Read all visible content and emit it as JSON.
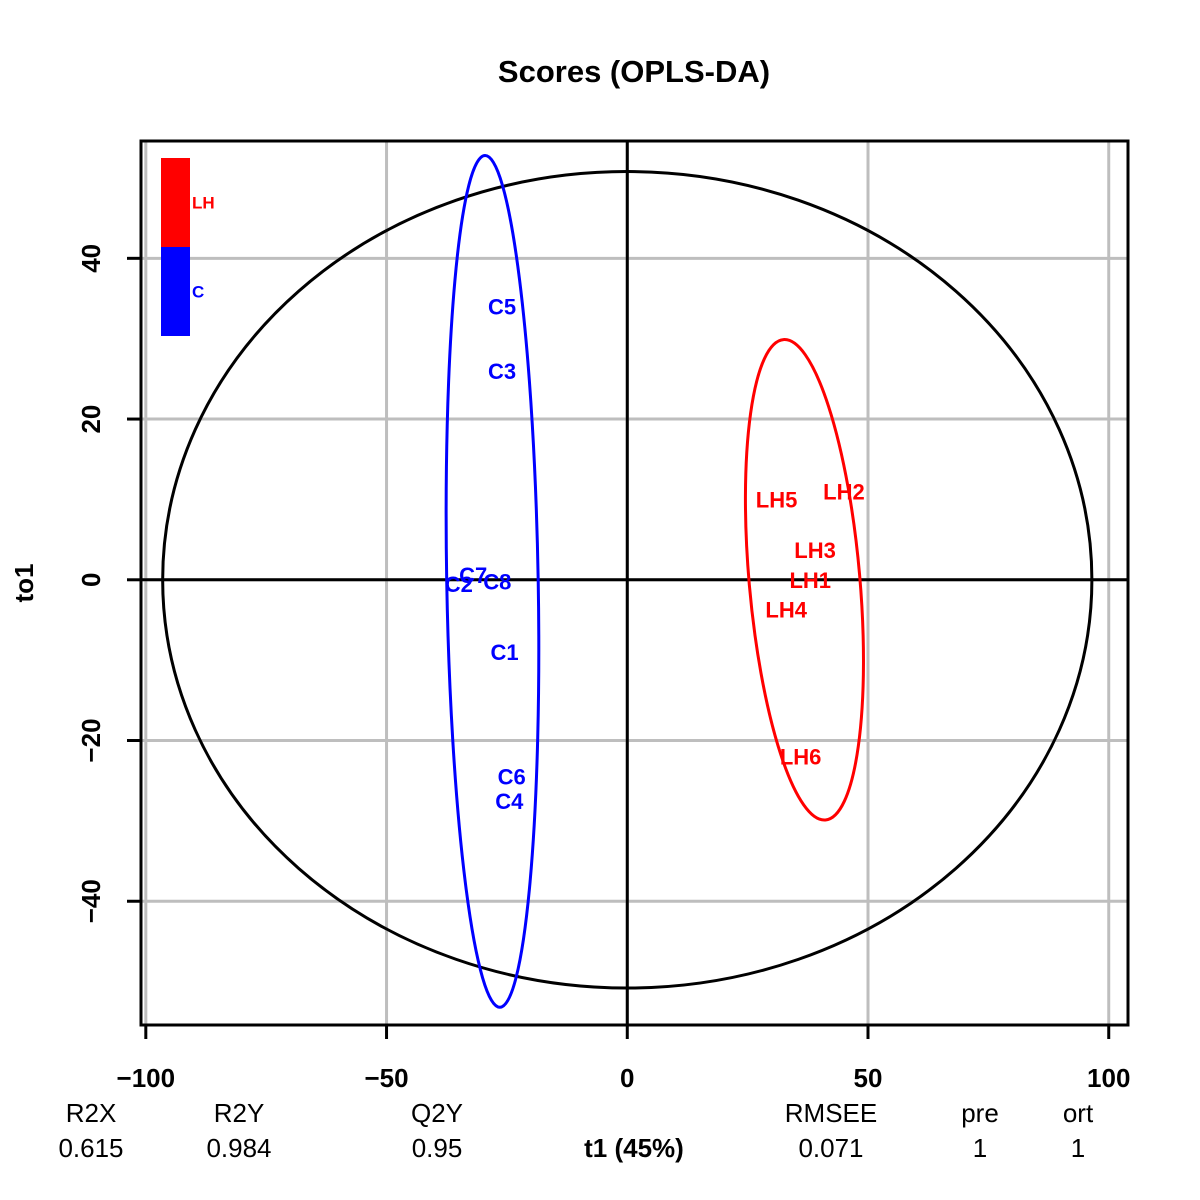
{
  "chart_data": {
    "type": "scatter",
    "title": "Scores (OPLS-DA)",
    "xlabel": "t1 (45%)",
    "ylabel": "to1",
    "xlim": [
      -101,
      104
    ],
    "ylim": [
      -55.4,
      54.6
    ],
    "grid": true,
    "x_ticks": [
      -100,
      -50,
      0,
      50,
      100
    ],
    "y_ticks": [
      -40,
      -20,
      0,
      20,
      40
    ],
    "legend": {
      "placement": "top-left",
      "entries": [
        {
          "name": "LH",
          "color": "#ff0000"
        },
        {
          "name": "C",
          "color": "#0000ff"
        }
      ]
    },
    "series": [
      {
        "name": "C",
        "color": "#0000ff",
        "points": [
          {
            "label": "C5",
            "x": -26,
            "y": 34
          },
          {
            "label": "C3",
            "x": -26,
            "y": 26
          },
          {
            "label": "C7",
            "x": -32,
            "y": 0.6
          },
          {
            "label": "C2",
            "x": -35,
            "y": -0.5
          },
          {
            "label": "C8",
            "x": -27,
            "y": -0.2
          },
          {
            "label": "C1",
            "x": -25.5,
            "y": -9
          },
          {
            "label": "C6",
            "x": -24,
            "y": -24.5
          },
          {
            "label": "C4",
            "x": -24.5,
            "y": -27.5
          }
        ],
        "ellipse": {
          "cx": -28,
          "cy": -0.2,
          "rx": 9.5,
          "ry": 53,
          "tilt": -1.0
        }
      },
      {
        "name": "LH",
        "color": "#ff0000",
        "points": [
          {
            "label": "LH2",
            "x": 45,
            "y": 11
          },
          {
            "label": "LH5",
            "x": 31,
            "y": 10
          },
          {
            "label": "LH3",
            "x": 39,
            "y": 3.7
          },
          {
            "label": "LH1",
            "x": 38,
            "y": 0
          },
          {
            "label": "LH4",
            "x": 33,
            "y": -3.7
          },
          {
            "label": "LH6",
            "x": 36,
            "y": -22
          }
        ],
        "ellipse": {
          "cx": 36.8,
          "cy": 0,
          "rx": 11.5,
          "ry": 30,
          "tilt": -5
        }
      }
    ],
    "hotelling_ellipse": {
      "cx": 0,
      "cy": 0,
      "rx": 96.5,
      "ry": 50.8,
      "color": "#000000"
    },
    "summary_table": {
      "headers": [
        "R2X",
        "R2Y",
        "Q2Y",
        "RMSEE",
        "pre",
        "ort"
      ],
      "values": [
        "0.615",
        "0.984",
        "0.95",
        "0.071",
        "1",
        "1"
      ]
    }
  }
}
